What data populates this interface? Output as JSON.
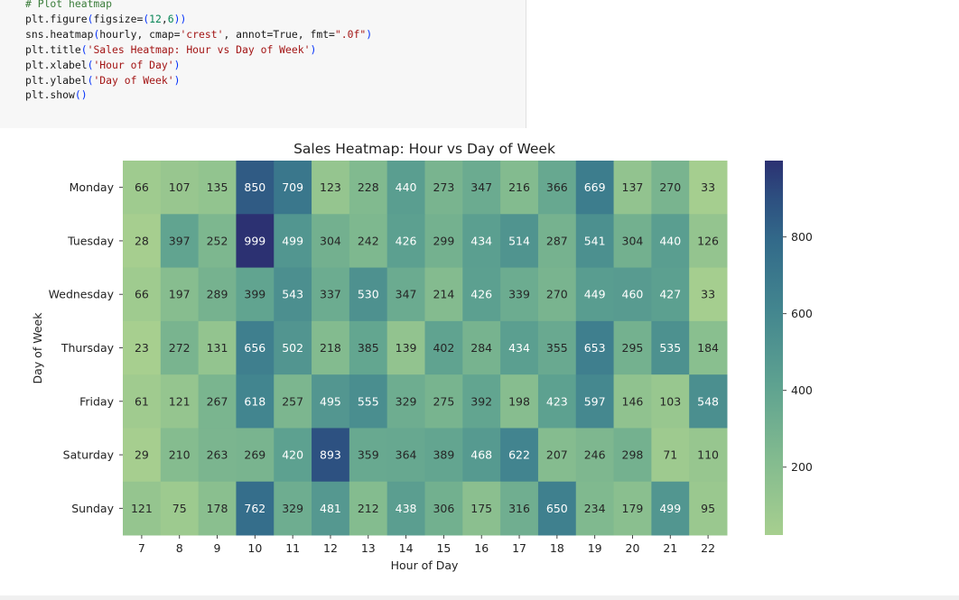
{
  "notebook": {
    "code_lines": [
      "# Plot heatmap",
      "plt.figure(figsize=(12,6))",
      "sns.heatmap(hourly, cmap='crest', annot=True, fmt=\".0f\")",
      "plt.title('Sales Heatmap: Hour vs Day of Week')",
      "plt.xlabel('Hour of Day')",
      "plt.ylabel('Day of Week')",
      "plt.show()"
    ],
    "output_icon": "output-collapse-icon"
  },
  "chart_data": {
    "type": "heatmap",
    "title": "Sales Heatmap: Hour vs Day of Week",
    "xlabel": "Hour of Day",
    "ylabel": "Day of Week",
    "x": [
      "7",
      "8",
      "9",
      "10",
      "11",
      "12",
      "13",
      "14",
      "15",
      "16",
      "17",
      "18",
      "19",
      "20",
      "21",
      "22"
    ],
    "y": [
      "Monday",
      "Tuesday",
      "Wednesday",
      "Thursday",
      "Friday",
      "Saturday",
      "Sunday"
    ],
    "values": [
      [
        66,
        107,
        135,
        850,
        709,
        123,
        228,
        440,
        273,
        347,
        216,
        366,
        669,
        137,
        270,
        33
      ],
      [
        28,
        397,
        252,
        999,
        499,
        304,
        242,
        426,
        299,
        434,
        514,
        287,
        541,
        304,
        440,
        126
      ],
      [
        66,
        197,
        289,
        399,
        543,
        337,
        530,
        347,
        214,
        426,
        339,
        270,
        449,
        460,
        427,
        33
      ],
      [
        23,
        272,
        131,
        656,
        502,
        218,
        385,
        139,
        402,
        284,
        434,
        355,
        653,
        295,
        535,
        184
      ],
      [
        61,
        121,
        267,
        618,
        257,
        495,
        555,
        329,
        275,
        392,
        198,
        423,
        597,
        146,
        103,
        548
      ],
      [
        29,
        210,
        263,
        269,
        420,
        893,
        359,
        364,
        389,
        468,
        622,
        207,
        246,
        298,
        71,
        110
      ],
      [
        121,
        75,
        178,
        762,
        329,
        481,
        212,
        438,
        306,
        175,
        316,
        650,
        234,
        179,
        499,
        95
      ]
    ],
    "cmap": "crest",
    "vmin": 23,
    "vmax": 999,
    "colorbar_ticks": [
      200,
      400,
      600,
      800
    ]
  }
}
